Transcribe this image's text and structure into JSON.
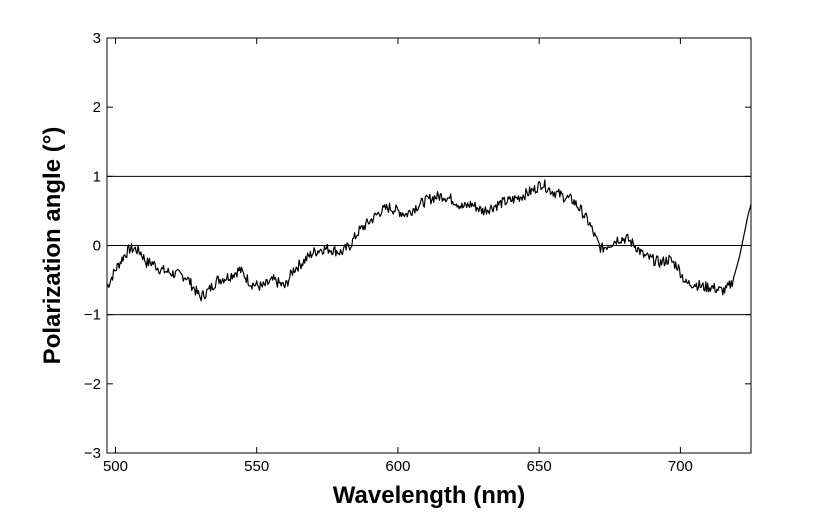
{
  "chart_data": {
    "type": "line",
    "title": "",
    "xlabel": "Wavelength (nm)",
    "ylabel": "Polarization angle (°)",
    "xlim": [
      497,
      725
    ],
    "ylim": [
      -3,
      3
    ],
    "x_ticks": [
      500,
      550,
      600,
      650,
      700
    ],
    "y_ticks": [
      3,
      2,
      1,
      0,
      -1,
      -2,
      -3
    ],
    "y_tick_labels": [
      "3",
      "2",
      "1",
      "0",
      "−1",
      "−2",
      "−3"
    ],
    "reference_lines_y": [
      1,
      0,
      -1
    ],
    "grid": false,
    "legend": "none",
    "line_color": "#000000",
    "series": [
      {
        "x": [
          497,
          500,
          503,
          505,
          507,
          509,
          511,
          513,
          516,
          520,
          525,
          530,
          533,
          536,
          540,
          544,
          548,
          552,
          556,
          560,
          563,
          566,
          570,
          573,
          576,
          580,
          583,
          586,
          590,
          594,
          597,
          600,
          603,
          606,
          610,
          613,
          616,
          620,
          623,
          626,
          630,
          633,
          637,
          640,
          644,
          648,
          651,
          654,
          658,
          662,
          665,
          668,
          670,
          672,
          675,
          678,
          681,
          684,
          687,
          690,
          693,
          696,
          699,
          702,
          705,
          708,
          711,
          714,
          716,
          718,
          719,
          720,
          721,
          722,
          723,
          724,
          725
        ],
        "y": [
          -0.6,
          -0.35,
          -0.15,
          -0.05,
          -0.05,
          -0.1,
          -0.25,
          -0.25,
          -0.35,
          -0.4,
          -0.45,
          -0.75,
          -0.65,
          -0.5,
          -0.45,
          -0.35,
          -0.55,
          -0.6,
          -0.5,
          -0.6,
          -0.35,
          -0.25,
          -0.1,
          -0.05,
          -0.05,
          -0.1,
          0.0,
          0.2,
          0.35,
          0.5,
          0.55,
          0.5,
          0.45,
          0.55,
          0.65,
          0.7,
          0.72,
          0.65,
          0.55,
          0.6,
          0.5,
          0.55,
          0.62,
          0.65,
          0.72,
          0.8,
          0.9,
          0.8,
          0.72,
          0.65,
          0.5,
          0.3,
          0.1,
          -0.05,
          0.02,
          0.1,
          0.1,
          0.0,
          -0.15,
          -0.2,
          -0.25,
          -0.2,
          -0.3,
          -0.55,
          -0.55,
          -0.6,
          -0.6,
          -0.65,
          -0.65,
          -0.55,
          -0.45,
          -0.3,
          -0.15,
          0.05,
          0.25,
          0.45,
          0.6
        ]
      }
    ]
  }
}
